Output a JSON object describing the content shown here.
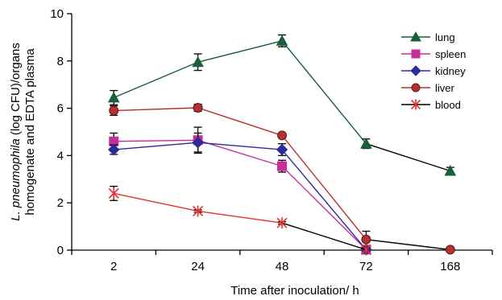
{
  "chart_data": {
    "type": "line",
    "xlabel": "Time after inoculation/ h",
    "ylabel_lines": [
      {
        "italic": "L. pneumophila",
        "rest": " (log CFU)/organs"
      },
      {
        "italic": "",
        "rest": "homogenate and EDTA plasma"
      }
    ],
    "ylim": [
      0,
      10
    ],
    "yticks": [
      0,
      2,
      4,
      6,
      8,
      10
    ],
    "categories": [
      "2",
      "24",
      "48",
      "72",
      "168"
    ],
    "legend_position": "top-right",
    "series": [
      {
        "name": "lung",
        "color": "#1a5e3a",
        "marker": "triangle",
        "values": [
          6.45,
          7.95,
          8.85,
          4.5,
          3.35
        ],
        "errors": [
          0.3,
          0.35,
          0.25,
          0.2,
          0.15
        ],
        "segment_colors": [
          "#1a5e3a",
          "#1a5e3a",
          "#1a5e3a",
          "#000000"
        ]
      },
      {
        "name": "spleen",
        "color": "#c62f9a",
        "marker": "square",
        "values": [
          4.6,
          4.65,
          3.55,
          0.02,
          null
        ],
        "errors": [
          0.35,
          0.55,
          0.25,
          0,
          0
        ],
        "segment_colors": [
          "#c62f9a",
          "#c62f9a",
          "#c62f9a"
        ]
      },
      {
        "name": "kidney",
        "color": "#2b2b9c",
        "marker": "diamond",
        "values": [
          4.25,
          4.55,
          4.25,
          0.02,
          null
        ],
        "errors": [
          0.2,
          0.4,
          0.25,
          0,
          0
        ],
        "segment_colors": [
          "#2b2b9c",
          "#2b2b9c",
          "#2b2b9c"
        ]
      },
      {
        "name": "liver",
        "color": "#b5302e",
        "marker": "circle",
        "values": [
          5.9,
          6.02,
          4.85,
          0.45,
          0.02
        ],
        "errors": [
          0.2,
          0.15,
          0.1,
          0.35,
          0
        ],
        "segment_colors": [
          "#b5302e",
          "#b5302e",
          "#b5302e",
          "#000000"
        ]
      },
      {
        "name": "blood",
        "color": "#e8302a",
        "marker": "asterisk",
        "values": [
          2.4,
          1.65,
          1.15,
          0.02,
          null
        ],
        "errors": [
          0.3,
          0.05,
          0.05,
          0,
          0
        ],
        "segment_colors": [
          "#e8302a",
          "#e8302a",
          "#000000"
        ]
      }
    ]
  }
}
